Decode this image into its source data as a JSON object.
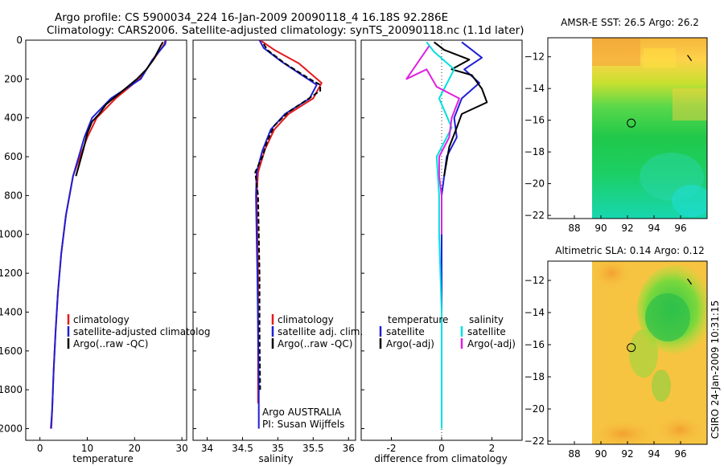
{
  "header": {
    "line1": "Argo profile: CS 5900034_224 16-Jan-2009 20090118_4 16.18S 92.286E",
    "line2": "Climatology: CARS2006. Satellite-adjusted climatology: synTS_20090118.nc (1.1d later)"
  },
  "footer": {
    "stamp": "CSIRO 24-Jan-2009 10:31:15"
  },
  "chart_data": [
    {
      "type": "line",
      "id": "temperature",
      "xlabel": "temperature",
      "ylabel": "",
      "xlim": [
        -3,
        31
      ],
      "ylim": [
        2060,
        0
      ],
      "xticks": [
        0,
        10,
        20,
        30
      ],
      "yticks": [
        0,
        200,
        400,
        600,
        800,
        1000,
        1200,
        1400,
        1600,
        1800,
        2000
      ],
      "legend": [
        "climatology",
        "satellite-adjusted climatolog",
        "Argo(..raw -QC)"
      ],
      "series": [
        {
          "name": "climatology",
          "color": "#e41a1c",
          "points": [
            [
              26.5,
              0
            ],
            [
              26.3,
              20
            ],
            [
              24,
              100
            ],
            [
              21,
              200
            ],
            [
              16,
              300
            ],
            [
              12,
              400
            ],
            [
              10,
              500
            ],
            [
              8.5,
              600
            ],
            [
              7,
              700
            ],
            [
              5.5,
              900
            ],
            [
              4.5,
              1100
            ],
            [
              3.8,
              1300
            ],
            [
              3.3,
              1500
            ],
            [
              2.9,
              1700
            ],
            [
              2.6,
              1900
            ],
            [
              2.4,
              2000
            ]
          ]
        },
        {
          "name": "satellite-adjusted climatolog",
          "color": "#1f1fd6",
          "points": [
            [
              26.6,
              0
            ],
            [
              26.5,
              20
            ],
            [
              23.8,
              100
            ],
            [
              21.3,
              200
            ],
            [
              15,
              300
            ],
            [
              11,
              400
            ],
            [
              9.4,
              500
            ],
            [
              8.2,
              600
            ],
            [
              7,
              700
            ],
            [
              5.5,
              900
            ],
            [
              4.5,
              1100
            ],
            [
              3.8,
              1300
            ],
            [
              3.3,
              1500
            ],
            [
              2.9,
              1700
            ],
            [
              2.6,
              1900
            ],
            [
              2.3,
              2000
            ]
          ]
        },
        {
          "name": "Argo(..raw -QC)",
          "color": "#000000",
          "points": [
            [
              26,
              10
            ],
            [
              25.5,
              30
            ],
            [
              24,
              100
            ],
            [
              22.5,
              150
            ],
            [
              20.5,
              200
            ],
            [
              19,
              230
            ],
            [
              16.5,
              280
            ],
            [
              14,
              330
            ],
            [
              12.5,
              380
            ],
            [
              11,
              420
            ],
            [
              10,
              480
            ],
            [
              9.2,
              560
            ],
            [
              8.3,
              640
            ],
            [
              7.6,
              700
            ]
          ]
        }
      ]
    },
    {
      "type": "line",
      "id": "salinity",
      "xlabel": "salinity",
      "ylabel": "",
      "xlim": [
        33.8,
        36.1
      ],
      "ylim": [
        2060,
        0
      ],
      "xticks": [
        34,
        34.5,
        35,
        35.5,
        36
      ],
      "yticks": [
        0,
        200,
        400,
        600,
        800,
        1000,
        1200,
        1400,
        1600,
        1800,
        2000
      ],
      "legend": [
        "climatology",
        "satellite adj. clim.",
        "Argo(..raw -QC)"
      ],
      "annotations": [
        "Argo AUSTRALIA",
        "PI: Susan Wijffels"
      ],
      "series": [
        {
          "name": "climatology",
          "color": "#e41a1c",
          "points": [
            [
              34.75,
              0
            ],
            [
              34.95,
              50
            ],
            [
              35.3,
              120
            ],
            [
              35.62,
              220
            ],
            [
              35.5,
              300
            ],
            [
              35.15,
              380
            ],
            [
              34.95,
              460
            ],
            [
              34.82,
              560
            ],
            [
              34.72,
              680
            ],
            [
              34.7,
              800
            ],
            [
              34.71,
              1000
            ],
            [
              34.72,
              1200
            ],
            [
              34.72,
              1500
            ],
            [
              34.72,
              1870
            ]
          ]
        },
        {
          "name": "satellite adj. clim.",
          "color": "#1f1fd6",
          "points": [
            [
              34.74,
              0
            ],
            [
              34.8,
              40
            ],
            [
              35.05,
              110
            ],
            [
              35.55,
              230
            ],
            [
              35.45,
              300
            ],
            [
              35.1,
              380
            ],
            [
              34.9,
              460
            ],
            [
              34.78,
              570
            ],
            [
              34.7,
              680
            ],
            [
              34.69,
              800
            ],
            [
              34.7,
              1000
            ],
            [
              34.71,
              1200
            ],
            [
              34.72,
              1500
            ],
            [
              34.73,
              1800
            ],
            [
              34.73,
              2000
            ]
          ]
        },
        {
          "name": "Argo(..raw -QC)",
          "color": "#000000",
          "points": [
            [
              34.8,
              20
            ],
            [
              34.85,
              50
            ],
            [
              35.1,
              120
            ],
            [
              35.45,
              200
            ],
            [
              35.6,
              230
            ],
            [
              35.6,
              260
            ],
            [
              35.4,
              310
            ],
            [
              35.15,
              370
            ],
            [
              34.95,
              440
            ],
            [
              34.85,
              520
            ],
            [
              34.78,
              600
            ],
            [
              34.68,
              680
            ],
            [
              34.72,
              800
            ],
            [
              34.73,
              1000
            ],
            [
              34.74,
              1200
            ],
            [
              34.74,
              1500
            ],
            [
              34.75,
              1800
            ]
          ]
        }
      ]
    },
    {
      "type": "line",
      "id": "difference",
      "xlabel": "difference from climatology",
      "ylabel": "",
      "xlim": [
        -3.2,
        3.2
      ],
      "ylim": [
        2060,
        0
      ],
      "xticks": [
        -2,
        0,
        2
      ],
      "yticks": [
        0,
        200,
        400,
        600,
        800,
        1000,
        1200,
        1400,
        1600,
        1800,
        2000
      ],
      "legend_left_title": "temperature",
      "legend_right_title": "salinity",
      "legend": [
        "satellite",
        "Argo(-adj)",
        "satellite",
        "Argo(-adj)"
      ],
      "series": [
        {
          "name": "temperature satellite",
          "color": "#1f1fd6",
          "points": [
            [
              0.8,
              10
            ],
            [
              1.2,
              50
            ],
            [
              1.6,
              90
            ],
            [
              0.9,
              150
            ],
            [
              1.5,
              220
            ],
            [
              0.8,
              300
            ],
            [
              0.5,
              400
            ],
            [
              0.6,
              500
            ],
            [
              0.2,
              600
            ],
            [
              0,
              800
            ],
            [
              0,
              1200
            ],
            [
              0,
              1600
            ],
            [
              0,
              2000
            ]
          ]
        },
        {
          "name": "temperature Argo(-adj)",
          "color": "#000000",
          "points": [
            [
              -0.3,
              10
            ],
            [
              0.1,
              50
            ],
            [
              1.1,
              100
            ],
            [
              0.4,
              150
            ],
            [
              1.2,
              180
            ],
            [
              1.6,
              250
            ],
            [
              1.8,
              320
            ],
            [
              0.8,
              380
            ],
            [
              0.6,
              450
            ],
            [
              0.3,
              550
            ],
            [
              0.1,
              700
            ]
          ]
        },
        {
          "name": "salinity satellite",
          "color": "#00e0e0",
          "points": [
            [
              -0.6,
              10
            ],
            [
              -0.3,
              60
            ],
            [
              0.5,
              150
            ],
            [
              -0.1,
              300
            ],
            [
              0.4,
              450
            ],
            [
              -0.2,
              600
            ],
            [
              -0.1,
              800
            ],
            [
              -0.1,
              1000
            ],
            [
              0,
              1400
            ],
            [
              0,
              1800
            ],
            [
              0,
              2000
            ]
          ]
        },
        {
          "name": "salinity Argo(-adj)",
          "color": "#e020e0",
          "points": [
            [
              -0.5,
              30
            ],
            [
              -1.4,
              200
            ],
            [
              -0.6,
              150
            ],
            [
              -0.2,
              240
            ],
            [
              0.7,
              300
            ],
            [
              0.4,
              400
            ],
            [
              0.3,
              500
            ],
            [
              -0.1,
              600
            ],
            [
              -0.1,
              700
            ],
            [
              0,
              800
            ],
            [
              0,
              1000
            ]
          ]
        }
      ]
    },
    {
      "type": "heatmap",
      "id": "amsr-sst",
      "title": "AMSR-E SST: 26.5 Argo: 26.2",
      "xlim": [
        86,
        98
      ],
      "ylim": [
        -22.2,
        -10.8
      ],
      "xticks": [
        88,
        90,
        92,
        94,
        96
      ],
      "yticks": [
        -12,
        -14,
        -16,
        -18,
        -20,
        -22
      ],
      "marker": {
        "lon": 92.286,
        "lat": -16.18
      },
      "track": {
        "lon": 96.7,
        "lat": -12.1
      }
    },
    {
      "type": "heatmap",
      "id": "altimetric-sla",
      "title": "Altimetric SLA: 0.14 Argo: 0.12",
      "xlim": [
        86,
        98
      ],
      "ylim": [
        -22.2,
        -10.8
      ],
      "xticks": [
        88,
        90,
        92,
        94,
        96
      ],
      "yticks": [
        -12,
        -14,
        -16,
        -18,
        -20,
        -22
      ],
      "marker": {
        "lon": 92.286,
        "lat": -16.18
      },
      "track": {
        "lon": 96.7,
        "lat": -12.1
      }
    }
  ]
}
